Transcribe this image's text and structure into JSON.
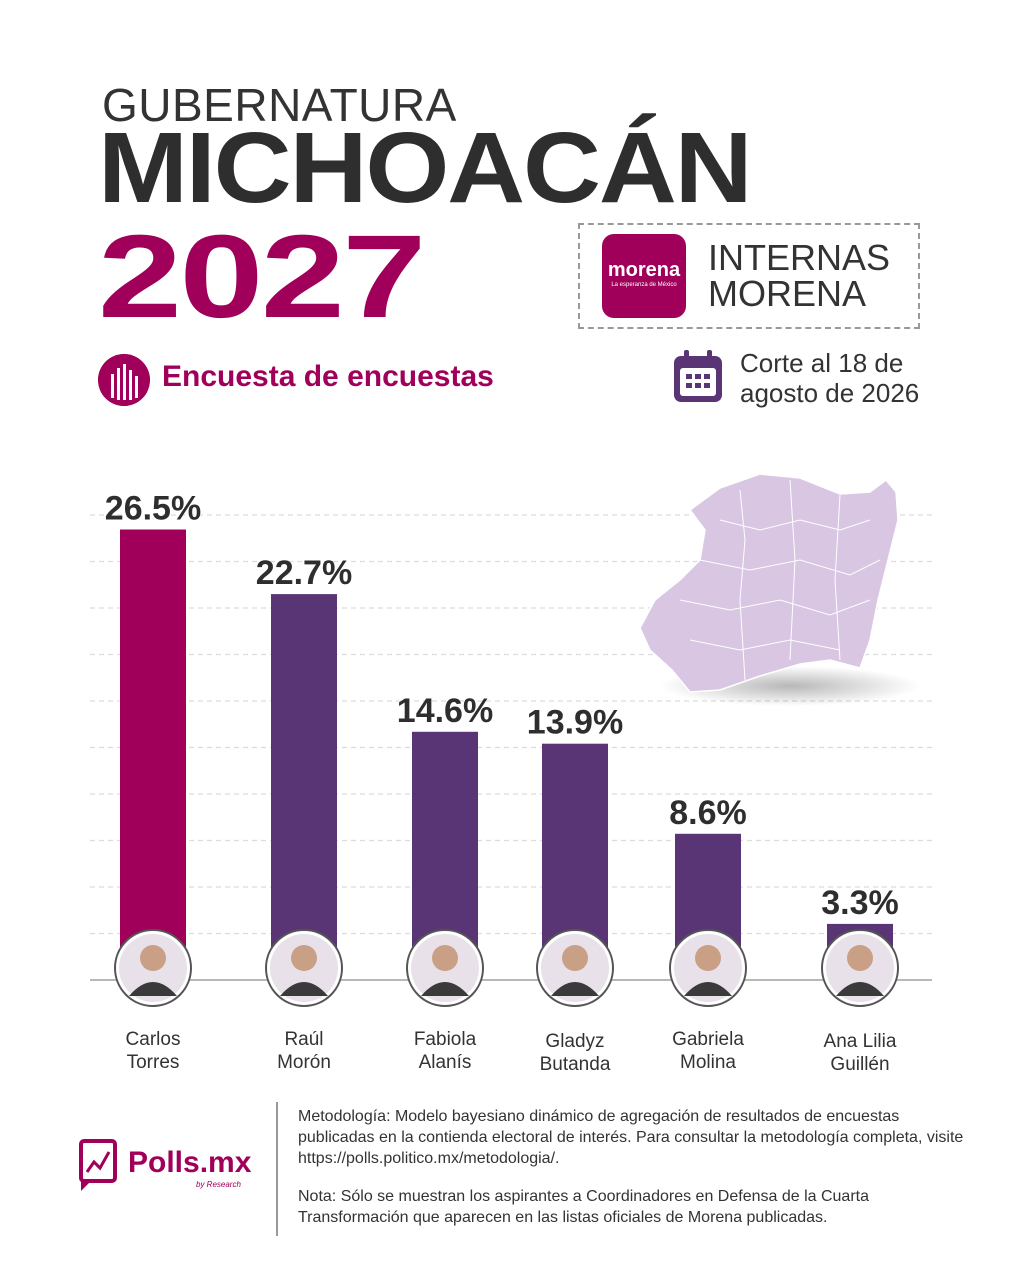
{
  "header": {
    "line1": "GUBERNATURA",
    "line2": "MICHOACÁN",
    "line3": "2027"
  },
  "badge": {
    "logo_word": "morena",
    "logo_sub": "La esperanza de México",
    "label_line1": "INTERNAS",
    "label_line2": "MORENA"
  },
  "subtitle": "Encuesta de encuestas",
  "cutoff": {
    "line1": "Corte al 18 de",
    "line2": "agosto de 2026"
  },
  "colors": {
    "accent": "#a0005a",
    "bar_primary": "#a0005a",
    "bar_secondary": "#5a3575",
    "map": "#d8c6e2"
  },
  "chart_data": {
    "type": "bar",
    "categories": [
      "Carlos Torres",
      "Raúl Morón",
      "Fabiola Alanís",
      "Gladyz Butanda",
      "Gabriela Molina",
      "Ana Lilia Guillén"
    ],
    "name_lines": [
      [
        "Carlos",
        "Torres"
      ],
      [
        "Raúl",
        "Morón"
      ],
      [
        "Fabiola",
        "Alanís"
      ],
      [
        "Gladyz",
        "Butanda"
      ],
      [
        "Gabriela",
        "Molina"
      ],
      [
        "Ana Lilia",
        "Guillén"
      ]
    ],
    "values": [
      26.5,
      22.7,
      14.6,
      13.9,
      8.6,
      3.3
    ],
    "labels": [
      "26.5%",
      "22.7%",
      "14.6%",
      "13.9%",
      "8.6%",
      "3.3%"
    ],
    "ylim": [
      0,
      30
    ],
    "grid": true
  },
  "footer": {
    "brand": "Polls.mx",
    "brand_sub": "by Research",
    "methodology": "Metodología: Modelo bayesiano dinámico de agregación de resultados de encuestas publicadas en la contienda electoral de interés. Para consultar la metodología completa, visite https://polls.politico.mx/metodologia/.",
    "note": "Nota: Sólo se muestran los aspirantes a Coordinadores en Defensa de la Cuarta Transformación que aparecen en las listas oficiales de Morena publicadas."
  }
}
